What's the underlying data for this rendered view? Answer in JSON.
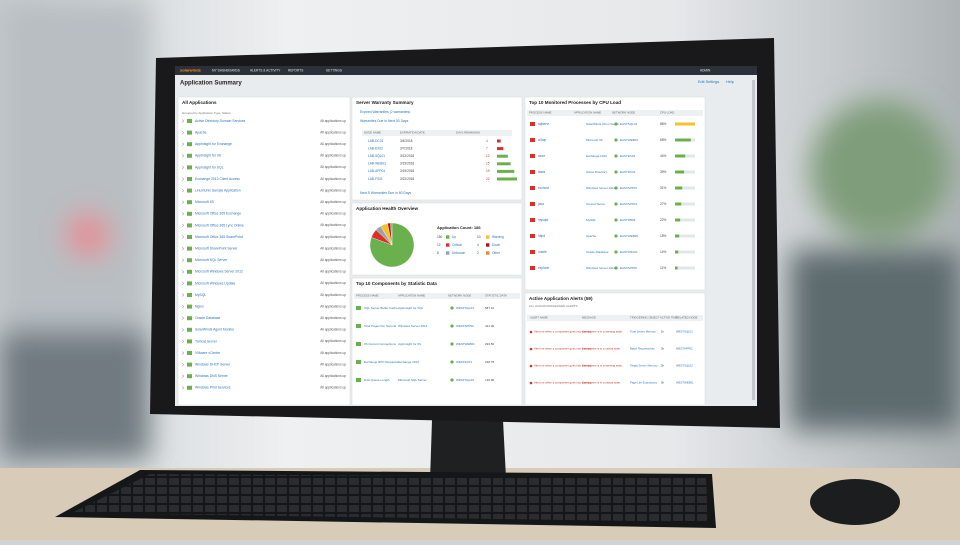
{
  "topbar": {
    "logo": "solarwinds",
    "menu": [
      "MY DASHBOARDS",
      "ALERTS & ACTIVITY",
      "REPORTS",
      "SETTINGS"
    ],
    "user": "ADMIN"
  },
  "header": {
    "title": "Application Summary",
    "links": [
      "Edit Settings",
      "Help"
    ]
  },
  "applications": {
    "title": "All Applications",
    "subtitle": "Grouped by Application Type, Status",
    "rows": [
      {
        "name": "Active Directory Domain Services",
        "status": "All applications up"
      },
      {
        "name": "Apache",
        "status": "All applications up"
      },
      {
        "name": "AppInsight for Exchange",
        "status": "All applications up"
      },
      {
        "name": "AppInsight for IIS",
        "status": "All applications up"
      },
      {
        "name": "AppInsight for SQL",
        "status": "All applications up"
      },
      {
        "name": "Exchange 2013 Client Access",
        "status": "All applications up"
      },
      {
        "name": "Linux/Unix Sample Application",
        "status": "All applications up"
      },
      {
        "name": "Microsoft IIS",
        "status": "All applications up"
      },
      {
        "name": "Microsoft Office 365 Exchange",
        "status": "All applications up"
      },
      {
        "name": "Microsoft Office 365 Lync Online",
        "status": "All applications up"
      },
      {
        "name": "Microsoft Office 365 SharePoint",
        "status": "All applications up"
      },
      {
        "name": "Microsoft SharePoint Server",
        "status": "All applications up"
      },
      {
        "name": "Microsoft SQL Server",
        "status": "All applications up"
      },
      {
        "name": "Microsoft Windows Server 2012",
        "status": "All applications up"
      },
      {
        "name": "Microsoft Windows Update",
        "status": "All applications up"
      },
      {
        "name": "MySQL",
        "status": "All applications up"
      },
      {
        "name": "Nginx",
        "status": "All applications up"
      },
      {
        "name": "Oracle Database",
        "status": "All applications up"
      },
      {
        "name": "SolarWinds Agent Monitor",
        "status": "All applications up"
      },
      {
        "name": "Tomcat Server",
        "status": "All applications up"
      },
      {
        "name": "VMware vCenter",
        "status": "All applications up"
      },
      {
        "name": "Windows DHCP Server",
        "status": "All applications up"
      },
      {
        "name": "Windows DNS Server",
        "status": "All applications up"
      },
      {
        "name": "Windows Print Services",
        "status": "All applications up"
      }
    ]
  },
  "warranty": {
    "title": "Server Warranty Summary",
    "lines": [
      "Expired Warranties (2 warranties)",
      "Warranties Due in Next 30 Days"
    ],
    "columns": [
      "NODE NAME",
      "EXPIRATION DATE",
      "DAYS REMAINING"
    ],
    "rows": [
      {
        "node": "LAB-DC01",
        "date": "3/4/2018"
      },
      {
        "node": "LAB-EX02",
        "date": "3/7/2018"
      },
      {
        "node": "LAB-SQL01",
        "date": "3/12/2018"
      },
      {
        "node": "LAB-WEB03",
        "date": "3/15/2018"
      },
      {
        "node": "LAB-APP04",
        "date": "3/19/2018"
      },
      {
        "node": "LAB-FS01",
        "date": "3/22/2018"
      }
    ],
    "values": [
      4,
      7,
      12,
      15,
      19,
      22
    ],
    "footer": "Next 5 Warranties Due in 60 Days"
  },
  "health": {
    "title": "Application Health Overview",
    "count_label": "Application Count: 186",
    "slices": [
      {
        "name": "Up",
        "value": 150,
        "color": "#6ab04c"
      },
      {
        "name": "Critical",
        "value": 12,
        "color": "#d9302b"
      },
      {
        "name": "Unknown",
        "value": 8,
        "color": "#9aa3ad"
      },
      {
        "name": "Warning",
        "value": 10,
        "color": "#f2c12e"
      },
      {
        "name": "Down",
        "value": 4,
        "color": "#a3161c"
      },
      {
        "name": "Other",
        "value": 2,
        "color": "#e98b2e"
      }
    ]
  },
  "components": {
    "title": "Top 10 Components by Statistic Data",
    "columns": [
      "PROCESS NAME",
      "APPLICATION NAME",
      "NETWORK NODE",
      "STATISTIC DATA"
    ],
    "rows": [
      [
        "SQL Server Buffer Cache",
        "AppInsight for SQL",
        "WESTSQL01",
        "587.10"
      ],
      [
        "Total Pages Per Second",
        "Windows Server 2012",
        "WESTAPP02",
        "421.00"
      ],
      [
        "IIS Current Connections",
        "AppInsight for IIS",
        "WESTWEB01",
        "293.50"
      ],
      [
        "Exchange RPC Requests",
        "Exchange 2013",
        "WESTEX01",
        "218.75"
      ],
      [
        "Disk Queue Length",
        "Microsoft SQL Server",
        "WESTSQL02",
        "136.00"
      ]
    ]
  },
  "processes": {
    "title": "Top 10 Monitored Processes by CPU Load",
    "columns": [
      "PROCESS NAME",
      "APPLICATION NAME",
      "NETWORK NODE",
      "CPU LOAD"
    ],
    "rows": [
      {
        "process": "sqlservr",
        "app": "SolarWinds Orion Server",
        "node": "EASTSQL01",
        "color": "#f2c12e"
      },
      {
        "process": "w3wp",
        "app": "Microsoft IIS",
        "node": "EASTWEB02",
        "color": "#6ab04c"
      },
      {
        "process": "store",
        "app": "Exchange 2013",
        "node": "EASTEX01",
        "color": "#6ab04c"
      },
      {
        "process": "lsass",
        "app": "Active Directory",
        "node": "EASTDC01",
        "color": "#6ab04c"
      },
      {
        "process": "svchost",
        "app": "Windows Server 2012",
        "node": "EASTAPP03",
        "color": "#6ab04c"
      },
      {
        "process": "java",
        "app": "Tomcat Server",
        "node": "EASTAPP04",
        "color": "#6ab04c"
      },
      {
        "process": "mysqld",
        "app": "MySQL",
        "node": "EASTDB02",
        "color": "#6ab04c"
      },
      {
        "process": "httpd",
        "app": "Apache",
        "node": "EASTWEB05",
        "color": "#6ab04c"
      },
      {
        "process": "oracle",
        "app": "Oracle Database",
        "node": "EASTORA01",
        "color": "#6ab04c"
      },
      {
        "process": "explorer",
        "app": "Windows Server 2012",
        "node": "EASTAPP06",
        "color": "#6ab04c"
      }
    ],
    "values": [
      86,
      68,
      44,
      39,
      31,
      27,
      22,
      18,
      14,
      11
    ],
    "value_labels": [
      "86%",
      "68%",
      "44%",
      "39%",
      "31%",
      "27%",
      "22%",
      "18%",
      "14%",
      "11%"
    ]
  },
  "alerts": {
    "title": "Active Application Alerts (59)",
    "subtitle": "ALL UNACKNOWLEDGED ALERTS",
    "columns": [
      "ALERT NAME",
      "MESSAGE",
      "TRIGGERING OBJECT",
      "ACTIVE TIME",
      "RELATED NODE"
    ],
    "rows": [
      [
        "Alert me when a component goes into warning",
        "Component is in a warning state",
        "Total Server Memory",
        "1h",
        "WESTSQL01"
      ],
      [
        "Alert me when a component goes into warning",
        "Component is in a critical state",
        "Batch Requests/sec",
        "3h",
        "WESTAPP02"
      ],
      [
        "Alert me when a component goes into warning",
        "Component is in a warning state",
        "Target Server Memory",
        "2h",
        "WESTSQL02"
      ],
      [
        "Alert me when a component goes into warning",
        "Component is in a critical state",
        "Page Life Expectancy",
        "5h",
        "WESTWEB01"
      ]
    ]
  }
}
